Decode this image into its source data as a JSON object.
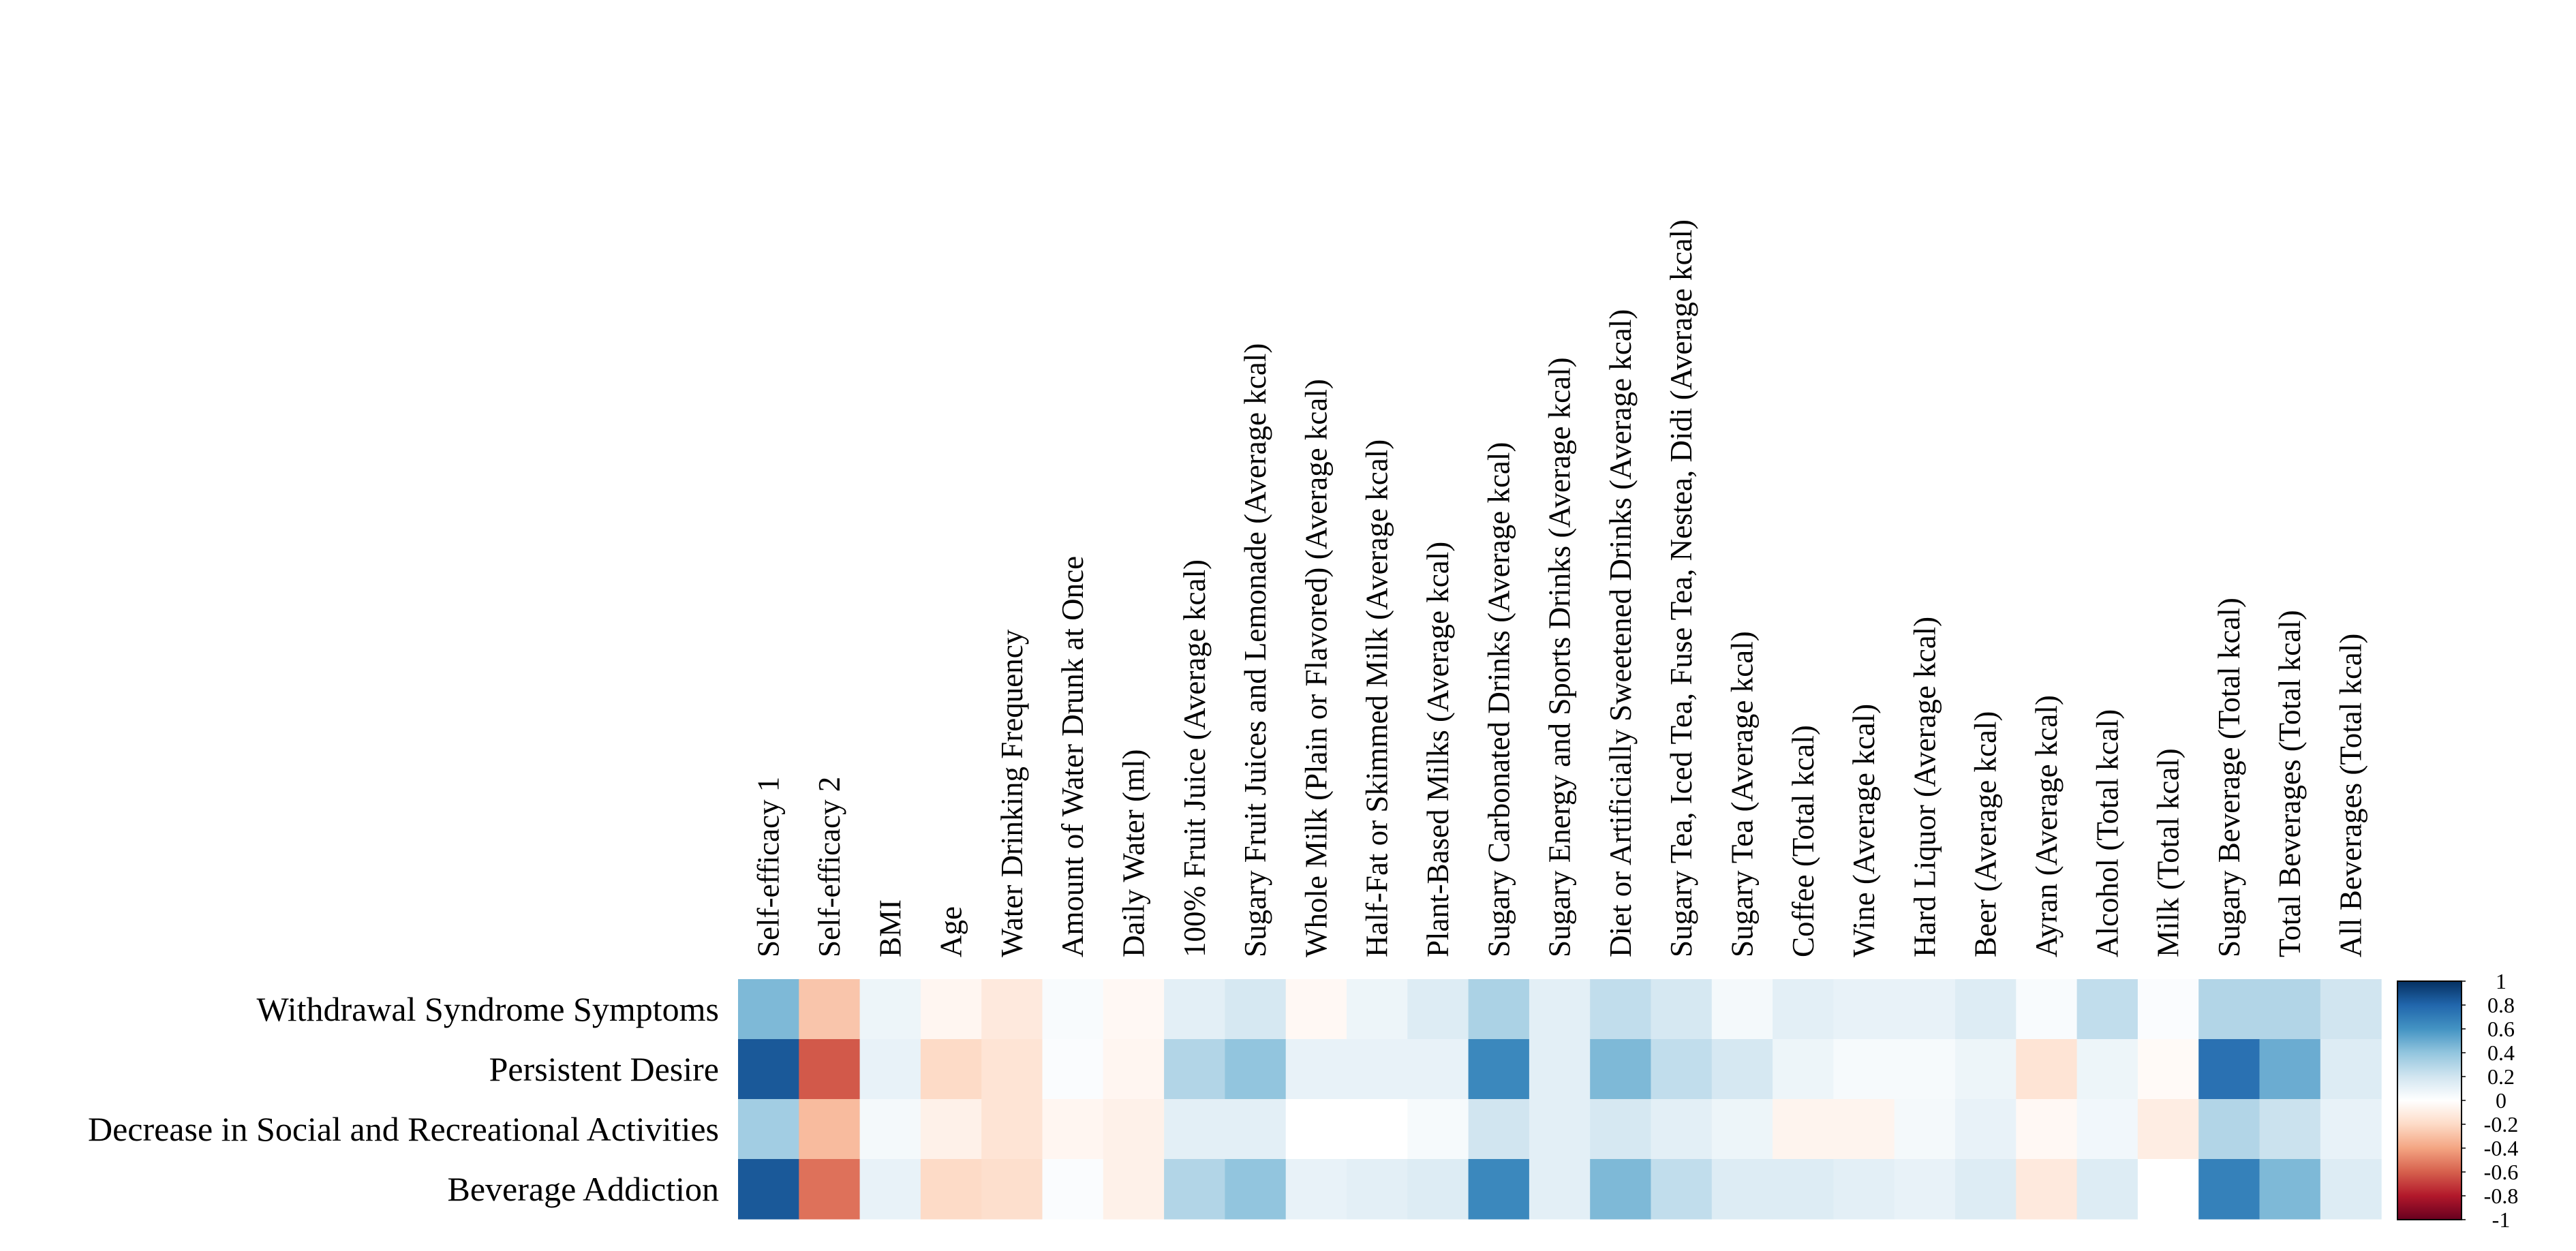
{
  "chart_data": {
    "type": "heatmap",
    "title": "",
    "columns": [
      "Self-efficacy 1",
      "Self-efficacy 2",
      "BMI",
      "Age",
      "Water Drinking Frequency",
      "Amount of Water Drunk at Once",
      "Daily Water (ml)",
      "100% Fruit Juice (Average kcal)",
      "Sugary Fruit Juices and Lemonade (Average kcal)",
      "Whole Milk (Plain or Flavored) (Average kcal)",
      "Half-Fat or Skimmed Milk (Average kcal)",
      "Plant-Based Milks (Average kcal)",
      "Sugary Carbonated Drinks (Average kcal)",
      "Sugary Energy and Sports Drinks (Average kcal)",
      "Diet or Artificially Sweetened Drinks (Average kcal)",
      "Sugary Tea, Iced Tea, Fuse Tea, Nestea, Didi (Average kcal)",
      "Sugary Tea (Average kcal)",
      "Coffee (Total kcal)",
      "Wine (Average kcal)",
      "Hard Liquor (Average kcal)",
      "Beer (Average kcal)",
      "Ayran (Average kcal)",
      "Alcohol (Total kcal)",
      "Milk (Total kcal)",
      "Sugary Beverage (Total kcal)",
      "Total Beverages (Total kcal)",
      "All Beverages (Total kcal)"
    ],
    "rows": [
      "Withdrawal Syndrome Symptoms",
      "Persistent Desire",
      "Decrease in Social and Recreational Activities",
      "Beverage Addiction"
    ],
    "values": [
      [
        0.45,
        -0.28,
        0.08,
        -0.05,
        -0.12,
        0.03,
        -0.04,
        0.12,
        0.18,
        -0.04,
        0.08,
        0.15,
        0.32,
        0.12,
        0.25,
        0.18,
        0.05,
        0.12,
        0.1,
        0.1,
        0.15,
        0.03,
        0.25,
        0.02,
        0.3,
        0.3,
        0.2
      ],
      [
        0.85,
        -0.62,
        0.1,
        -0.2,
        -0.15,
        0.02,
        -0.05,
        0.3,
        0.4,
        0.1,
        0.1,
        0.1,
        0.65,
        0.12,
        0.45,
        0.25,
        0.18,
        0.08,
        0.04,
        0.04,
        0.08,
        -0.15,
        0.08,
        -0.03,
        0.75,
        0.5,
        0.15
      ],
      [
        0.35,
        -0.32,
        0.05,
        -0.08,
        -0.15,
        -0.05,
        -0.08,
        0.12,
        0.12,
        0.0,
        0.0,
        0.04,
        0.2,
        0.12,
        0.18,
        0.12,
        0.08,
        -0.06,
        -0.06,
        0.05,
        0.1,
        -0.04,
        0.06,
        -0.1,
        0.3,
        0.22,
        0.1
      ],
      [
        0.85,
        -0.55,
        0.1,
        -0.2,
        -0.18,
        0.02,
        -0.08,
        0.3,
        0.4,
        0.1,
        0.12,
        0.15,
        0.65,
        0.12,
        0.45,
        0.25,
        0.15,
        0.15,
        0.12,
        0.1,
        0.15,
        -0.12,
        0.15,
        0.0,
        0.68,
        0.45,
        0.15
      ]
    ],
    "color_scale": {
      "min": -1,
      "max": 1,
      "stops": [
        "#67001f",
        "#b2182b",
        "#d6604d",
        "#f4a582",
        "#fddbc7",
        "#ffffff",
        "#d1e5f0",
        "#92c5de",
        "#4393c3",
        "#2166ac",
        "#053061"
      ]
    },
    "legend": {
      "placement": "right",
      "ticks": [
        "1",
        "0.8",
        "0.6",
        "0.4",
        "0.2",
        "0",
        "-0.2",
        "-0.4",
        "-0.6",
        "-0.8",
        "-1"
      ]
    },
    "grid": false
  }
}
